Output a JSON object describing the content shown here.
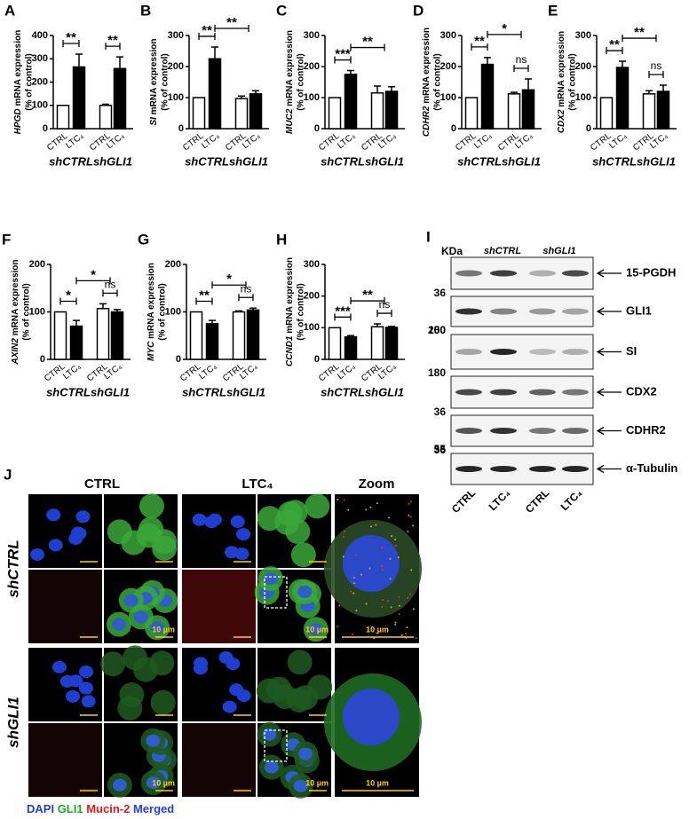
{
  "chart_data": [
    {
      "type": "bar",
      "panel": "A",
      "gene": "HPGD",
      "ylabel": "mRNA expression",
      "ylabel_unit": "(% of control)",
      "categories": [
        "CTRL",
        "LTC₄",
        "CTRL",
        "LTC₄"
      ],
      "groups": [
        "shCTRL",
        "shGLI1"
      ],
      "values": [
        100,
        265,
        100,
        258
      ],
      "errors": [
        0,
        55,
        5,
        50
      ],
      "colors": [
        "#ffffff",
        "#000000",
        "#ffffff",
        "#000000"
      ],
      "ylim": [
        0,
        400
      ],
      "yticks": [
        0,
        100,
        200,
        300,
        400
      ],
      "annotations": [
        {
          "text": "**",
          "span": [
            0,
            1
          ]
        },
        {
          "text": "**",
          "span": [
            2,
            3
          ]
        }
      ]
    },
    {
      "type": "bar",
      "panel": "B",
      "gene": "SI",
      "ylabel": "mRNA expression",
      "ylabel_unit": "(% of control)",
      "categories": [
        "CTRL",
        "LTC₄",
        "CTRL",
        "LTC₄"
      ],
      "groups": [
        "shCTRL",
        "shGLI1"
      ],
      "values": [
        100,
        225,
        97,
        112
      ],
      "errors": [
        0,
        38,
        8,
        10
      ],
      "colors": [
        "#ffffff",
        "#000000",
        "#ffffff",
        "#000000"
      ],
      "ylim": [
        0,
        300
      ],
      "yticks": [
        0,
        100,
        200,
        300
      ],
      "annotations": [
        {
          "text": "**",
          "span": [
            0,
            1
          ]
        },
        {
          "text": "**",
          "span": [
            1,
            3
          ]
        }
      ]
    },
    {
      "type": "bar",
      "panel": "C",
      "gene": "MUC2",
      "ylabel": "mRNA expression",
      "ylabel_unit": "(% of control)",
      "categories": [
        "CTRL",
        "LTC₄",
        "CTRL",
        "LTC₄"
      ],
      "groups": [
        "shCTRL",
        "shGLI1"
      ],
      "values": [
        100,
        175,
        115,
        120
      ],
      "errors": [
        0,
        12,
        22,
        15
      ],
      "colors": [
        "#ffffff",
        "#000000",
        "#ffffff",
        "#000000"
      ],
      "ylim": [
        0,
        300
      ],
      "yticks": [
        0,
        100,
        200,
        300
      ],
      "annotations": [
        {
          "text": "***",
          "span": [
            0,
            1
          ]
        },
        {
          "text": "**",
          "span": [
            1,
            3
          ]
        }
      ]
    },
    {
      "type": "bar",
      "panel": "D",
      "gene": "CDHR2",
      "ylabel": "mRNA expression",
      "ylabel_unit": "(% of control)",
      "categories": [
        "CTRL",
        "LTC₄",
        "CTRL",
        "LTC₄"
      ],
      "groups": [
        "shCTRL",
        "shGLI1"
      ],
      "values": [
        100,
        207,
        112,
        125
      ],
      "errors": [
        0,
        22,
        5,
        35
      ],
      "colors": [
        "#ffffff",
        "#000000",
        "#ffffff",
        "#000000"
      ],
      "ylim": [
        0,
        300
      ],
      "yticks": [
        0,
        100,
        200,
        300
      ],
      "annotations": [
        {
          "text": "**",
          "span": [
            0,
            1
          ]
        },
        {
          "text": "*",
          "span": [
            1,
            3
          ]
        },
        {
          "text": "ns",
          "span": [
            2,
            3
          ]
        }
      ]
    },
    {
      "type": "bar",
      "panel": "E",
      "gene": "CDX2",
      "ylabel": "mRNA expression",
      "ylabel_unit": "(% of control)",
      "categories": [
        "CTRL",
        "LTC₄",
        "CTRL",
        "LTC₄"
      ],
      "groups": [
        "shCTRL",
        "shGLI1"
      ],
      "values": [
        100,
        197,
        112,
        120
      ],
      "errors": [
        0,
        20,
        10,
        20
      ],
      "colors": [
        "#ffffff",
        "#000000",
        "#ffffff",
        "#000000"
      ],
      "ylim": [
        0,
        300
      ],
      "yticks": [
        0,
        100,
        200,
        300
      ],
      "annotations": [
        {
          "text": "**",
          "span": [
            0,
            1
          ]
        },
        {
          "text": "**",
          "span": [
            1,
            3
          ]
        },
        {
          "text": "ns",
          "span": [
            2,
            3
          ]
        }
      ]
    },
    {
      "type": "bar",
      "panel": "F",
      "gene": "AXIN2",
      "ylabel": "mRNA expression",
      "ylabel_unit": "(% of control)",
      "categories": [
        "CTRL",
        "LTC₄",
        "CTRL",
        "LTC₄"
      ],
      "groups": [
        "shCTRL",
        "shGLI1"
      ],
      "values": [
        100,
        70,
        107,
        100
      ],
      "errors": [
        0,
        12,
        10,
        5
      ],
      "colors": [
        "#ffffff",
        "#000000",
        "#ffffff",
        "#000000"
      ],
      "ylim": [
        0,
        200
      ],
      "yticks": [
        0,
        100,
        200
      ],
      "annotations": [
        {
          "text": "*",
          "span": [
            0,
            1
          ]
        },
        {
          "text": "*",
          "span": [
            1,
            3
          ]
        },
        {
          "text": "ns",
          "span": [
            2,
            3
          ]
        }
      ]
    },
    {
      "type": "bar",
      "panel": "G",
      "gene": "MYC",
      "ylabel": "mRNA expression",
      "ylabel_unit": "(% of control)",
      "categories": [
        "CTRL",
        "LTC₄",
        "CTRL",
        "LTC₄"
      ],
      "groups": [
        "shCTRL",
        "shGLI1"
      ],
      "values": [
        100,
        75,
        100,
        104
      ],
      "errors": [
        0,
        7,
        2,
        4
      ],
      "colors": [
        "#ffffff",
        "#000000",
        "#ffffff",
        "#000000"
      ],
      "ylim": [
        0,
        200
      ],
      "yticks": [
        0,
        100,
        200
      ],
      "annotations": [
        {
          "text": "**",
          "span": [
            0,
            1
          ]
        },
        {
          "text": "*",
          "span": [
            1,
            3
          ]
        },
        {
          "text": "ns",
          "span": [
            2,
            3
          ]
        }
      ]
    },
    {
      "type": "bar",
      "panel": "H",
      "gene": "CCND1",
      "ylabel": "mRNA expression",
      "ylabel_unit": "(% of control)",
      "categories": [
        "CTRL",
        "LTC₄",
        "CTRL",
        "LTC₄"
      ],
      "groups": [
        "shCTRL",
        "shGLI1"
      ],
      "values": [
        100,
        71,
        103,
        101
      ],
      "errors": [
        0,
        4,
        9,
        3
      ],
      "colors": [
        "#ffffff",
        "#000000",
        "#ffffff",
        "#000000"
      ],
      "ylim": [
        0,
        300
      ],
      "yticks": [
        0,
        100,
        200,
        300
      ],
      "annotations": [
        {
          "text": "***",
          "span": [
            0,
            1
          ]
        },
        {
          "text": "**",
          "span": [
            1,
            3
          ]
        },
        {
          "text": "ns",
          "span": [
            2,
            3
          ]
        }
      ]
    }
  ],
  "blot": {
    "panel": "I",
    "unit": "KDa",
    "groups": [
      "shCTRL",
      "shGLI1"
    ],
    "lanes": [
      "CTRL",
      "LTC₄",
      "CTRL",
      "LTC₄"
    ],
    "bands": [
      {
        "label": "15-PGDH",
        "marker_bottom": "36"
      },
      {
        "label": "GLI1",
        "marker_bottom": "100"
      },
      {
        "label": "SI",
        "marker_top": "250",
        "marker_bottom": "180"
      },
      {
        "label": "CDX2",
        "marker_bottom": "36"
      },
      {
        "label": "CDHR2",
        "marker_bottom": "36"
      },
      {
        "label": "α-Tubulin",
        "marker_top": "55"
      }
    ]
  },
  "micrograph": {
    "panel": "J",
    "columns": [
      "CTRL",
      "LTC₄",
      "Zoom"
    ],
    "rows": [
      "shCTRL",
      "shGLI1"
    ],
    "scale_label": "10 µm",
    "legend": [
      "DAPI",
      "GLI1",
      "Mucin-2",
      "Merged"
    ]
  }
}
